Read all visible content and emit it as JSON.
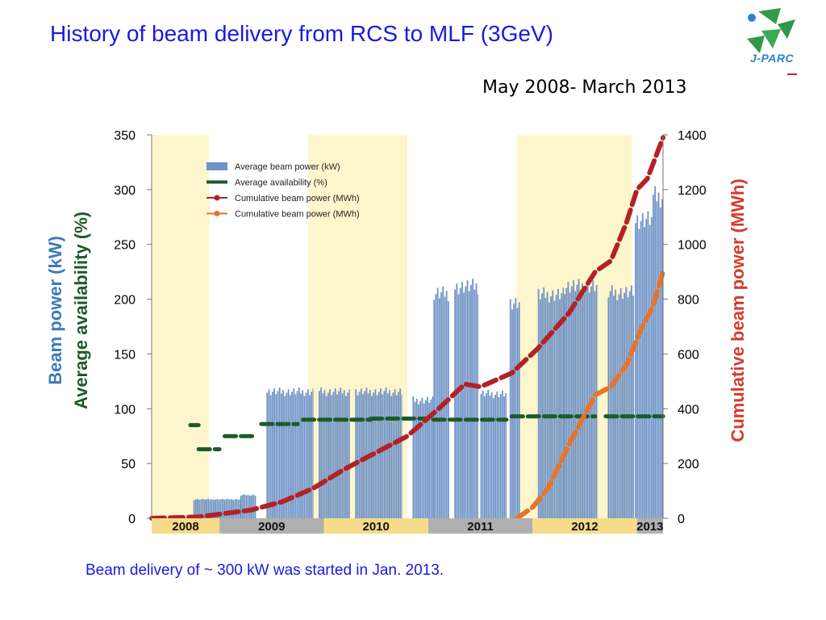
{
  "title": "History of beam delivery from RCS to MLF (3GeV)",
  "subtitle": "May 2008- March 2013",
  "logo_text": "J-PARC",
  "caption": "Beam delivery of ~ 300 kW was started in Jan. 2013.",
  "colors": {
    "title": "#1a1adc",
    "power_bar": "#6f93c6",
    "availability": "#1d5a2a",
    "cumulative_red": "#b22226",
    "cumulative_orange": "#e8732a",
    "ylabel_power": "#3f78b8",
    "ylabel_avail": "#1d5a2a",
    "ylabel_right": "#d63a2c",
    "band_yellow": "#fdf6cc",
    "year_yellow": "#f5dc8a",
    "year_gray": "#b0b0b0"
  },
  "chart_data": {
    "type": "bar",
    "xlabel": "",
    "ylabel_left_line1": "Beam power (kW)",
    "ylabel_left_line2": "Average availability (%)",
    "ylabel_right": "Cumulative beam power (MWh)",
    "ylim_left": [
      0,
      350
    ],
    "ylim_right": [
      0,
      1400
    ],
    "left_ticks": [
      "0",
      "50",
      "100",
      "150",
      "200",
      "250",
      "300",
      "350"
    ],
    "right_ticks": [
      "0",
      "200",
      "400",
      "600",
      "800",
      "1000",
      "1200",
      "1400"
    ],
    "x_range": [
      2008.35,
      2013.25
    ],
    "years": [
      {
        "label": "2008",
        "start": 2008.35,
        "end": 2009.0,
        "shade": "yellow"
      },
      {
        "label": "2009",
        "start": 2009.0,
        "end": 2010.0,
        "shade": "gray"
      },
      {
        "label": "2010",
        "start": 2010.0,
        "end": 2011.0,
        "shade": "yellow"
      },
      {
        "label": "2011",
        "start": 2011.0,
        "end": 2012.0,
        "shade": "gray"
      },
      {
        "label": "2012",
        "start": 2012.0,
        "end": 2013.0,
        "shade": "yellow"
      },
      {
        "label": "2013",
        "start": 2013.0,
        "end": 2013.25,
        "shade": "gray"
      }
    ],
    "background_bands": [
      [
        2008.35,
        2008.9
      ],
      [
        2009.85,
        2010.8
      ],
      [
        2011.85,
        2012.95
      ]
    ],
    "legend": [
      {
        "label": "Average beam power (kW)",
        "kind": "bar"
      },
      {
        "label": "Average availability (%)",
        "kind": "dash"
      },
      {
        "label": "Cumulative beam power (MWh)",
        "kind": "line-red"
      },
      {
        "label": "Cumulative beam power (MWh)",
        "kind": "line-orange"
      }
    ],
    "legend_position": "top-left",
    "series": [
      {
        "name": "Average beam power (kW)",
        "kind": "bar",
        "segments": [
          {
            "start": 2008.75,
            "end": 2009.2,
            "value": 18
          },
          {
            "start": 2009.2,
            "end": 2009.35,
            "value": 22
          },
          {
            "start": 2009.45,
            "end": 2009.9,
            "value": 120
          },
          {
            "start": 2009.95,
            "end": 2010.25,
            "value": 120
          },
          {
            "start": 2010.3,
            "end": 2010.75,
            "value": 120
          },
          {
            "start": 2010.85,
            "end": 2011.05,
            "value": 112
          },
          {
            "start": 2011.05,
            "end": 2011.2,
            "value": 213
          },
          {
            "start": 2011.25,
            "end": 2011.48,
            "value": 220
          },
          {
            "start": 2011.5,
            "end": 2011.75,
            "value": 118
          },
          {
            "start": 2011.78,
            "end": 2011.88,
            "value": 205
          },
          {
            "start": 2012.05,
            "end": 2012.3,
            "value": 212
          },
          {
            "start": 2012.3,
            "end": 2012.62,
            "value": 220
          },
          {
            "start": 2012.72,
            "end": 2012.98,
            "value": 214
          },
          {
            "start": 2012.98,
            "end": 2013.15,
            "value": 282
          },
          {
            "start": 2013.15,
            "end": 2013.25,
            "value": 305
          }
        ]
      },
      {
        "name": "Average availability (%)",
        "kind": "dash",
        "segments": [
          {
            "start": 2008.72,
            "end": 2008.8,
            "value": 85
          },
          {
            "start": 2008.8,
            "end": 2009.0,
            "value": 63
          },
          {
            "start": 2009.05,
            "end": 2009.35,
            "value": 75
          },
          {
            "start": 2009.4,
            "end": 2009.75,
            "value": 86
          },
          {
            "start": 2009.8,
            "end": 2010.45,
            "value": 90
          },
          {
            "start": 2010.45,
            "end": 2011.0,
            "value": 91
          },
          {
            "start": 2011.05,
            "end": 2011.75,
            "value": 90
          },
          {
            "start": 2011.8,
            "end": 2012.6,
            "value": 93
          },
          {
            "start": 2012.7,
            "end": 2013.25,
            "value": 93
          }
        ]
      },
      {
        "name": "Cumulative beam power (MWh)",
        "kind": "line-red",
        "x": [
          2008.35,
          2008.8,
          2009.3,
          2009.6,
          2009.9,
          2010.2,
          2010.5,
          2010.8,
          2011.1,
          2011.35,
          2011.5,
          2011.8,
          2012.05,
          2012.35,
          2012.6,
          2012.75,
          2012.9,
          2013.0,
          2013.1,
          2013.25
        ],
        "y": [
          0,
          5,
          30,
          60,
          110,
          180,
          240,
          300,
          400,
          490,
          480,
          530,
          620,
          750,
          900,
          940,
          1080,
          1200,
          1240,
          1390
        ]
      },
      {
        "name": "Cumulative beam power (MWh)",
        "kind": "line-orange",
        "x": [
          2011.85,
          2012.0,
          2012.15,
          2012.35,
          2012.6,
          2012.75,
          2012.9,
          2013.05,
          2013.15,
          2013.25
        ],
        "y": [
          0,
          40,
          110,
          270,
          450,
          480,
          560,
          700,
          770,
          900
        ]
      }
    ]
  }
}
